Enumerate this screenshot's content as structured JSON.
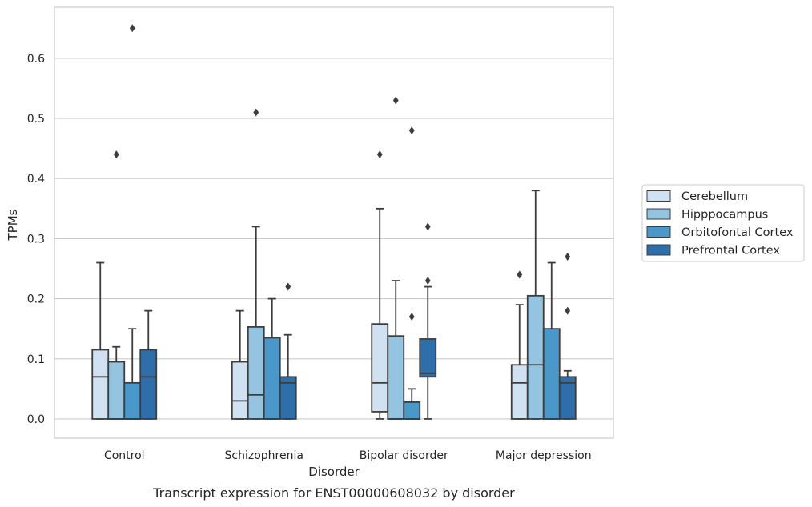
{
  "chart_data": {
    "type": "box",
    "xlabel": "Disorder",
    "ylabel": "TPMs",
    "caption": "Transcript expression for ENST00000608032 by disorder",
    "categories": [
      "Control",
      "Schizophrenia",
      "Bipolar disorder",
      "Major depression"
    ],
    "ylim": [
      -0.032,
      0.685
    ],
    "yticks": [
      0.0,
      0.1,
      0.2,
      0.3,
      0.4,
      0.5,
      0.6
    ],
    "ytick_labels": [
      "0.0",
      "0.1",
      "0.2",
      "0.3",
      "0.4",
      "0.5",
      "0.6"
    ],
    "grid": "horizontal",
    "legend_position": "right",
    "series": [
      {
        "name": "Cerebellum",
        "color": "#d0e1f2",
        "boxes": [
          {
            "whislo": 0.0,
            "q1": 0.0,
            "med": 0.07,
            "q3": 0.115,
            "whishi": 0.26,
            "fliers": []
          },
          {
            "whislo": 0.0,
            "q1": 0.0,
            "med": 0.03,
            "q3": 0.095,
            "whishi": 0.18,
            "fliers": []
          },
          {
            "whislo": 0.0,
            "q1": 0.012,
            "med": 0.06,
            "q3": 0.158,
            "whishi": 0.35,
            "fliers": [
              0.44
            ]
          },
          {
            "whislo": 0.0,
            "q1": 0.0,
            "med": 0.06,
            "q3": 0.09,
            "whishi": 0.19,
            "fliers": [
              0.24
            ]
          }
        ]
      },
      {
        "name": "Hipppocampus",
        "color": "#94c4df",
        "boxes": [
          {
            "whislo": 0.0,
            "q1": 0.0,
            "med": 0.0,
            "q3": 0.095,
            "whishi": 0.12,
            "fliers": [
              0.44
            ]
          },
          {
            "whislo": 0.0,
            "q1": 0.0,
            "med": 0.04,
            "q3": 0.153,
            "whishi": 0.32,
            "fliers": [
              0.51
            ]
          },
          {
            "whislo": 0.0,
            "q1": 0.0,
            "med": 0.0,
            "q3": 0.138,
            "whishi": 0.23,
            "fliers": [
              0.53
            ]
          },
          {
            "whislo": 0.0,
            "q1": 0.0,
            "med": 0.09,
            "q3": 0.205,
            "whishi": 0.38,
            "fliers": []
          }
        ]
      },
      {
        "name": "Orbitofontal Cortex",
        "color": "#4a98c9",
        "boxes": [
          {
            "whislo": 0.0,
            "q1": 0.0,
            "med": 0.0,
            "q3": 0.06,
            "whishi": 0.15,
            "fliers": [
              0.65
            ]
          },
          {
            "whislo": 0.0,
            "q1": 0.0,
            "med": 0.0,
            "q3": 0.135,
            "whishi": 0.2,
            "fliers": []
          },
          {
            "whislo": 0.0,
            "q1": 0.0,
            "med": 0.0,
            "q3": 0.028,
            "whishi": 0.05,
            "fliers": [
              0.17,
              0.48
            ]
          },
          {
            "whislo": 0.0,
            "q1": 0.0,
            "med": 0.0,
            "q3": 0.15,
            "whishi": 0.26,
            "fliers": []
          }
        ]
      },
      {
        "name": "Prefrontal Cortex",
        "color": "#2e6fab",
        "boxes": [
          {
            "whislo": 0.0,
            "q1": 0.0,
            "med": 0.07,
            "q3": 0.115,
            "whishi": 0.18,
            "fliers": []
          },
          {
            "whislo": 0.0,
            "q1": 0.0,
            "med": 0.06,
            "q3": 0.07,
            "whishi": 0.14,
            "fliers": [
              0.22
            ]
          },
          {
            "whislo": 0.0,
            "q1": 0.07,
            "med": 0.076,
            "q3": 0.133,
            "whishi": 0.22,
            "fliers": [
              0.23,
              0.32
            ]
          },
          {
            "whislo": 0.0,
            "q1": 0.0,
            "med": 0.06,
            "q3": 0.07,
            "whishi": 0.08,
            "fliers": [
              0.18,
              0.27
            ]
          }
        ]
      }
    ]
  }
}
